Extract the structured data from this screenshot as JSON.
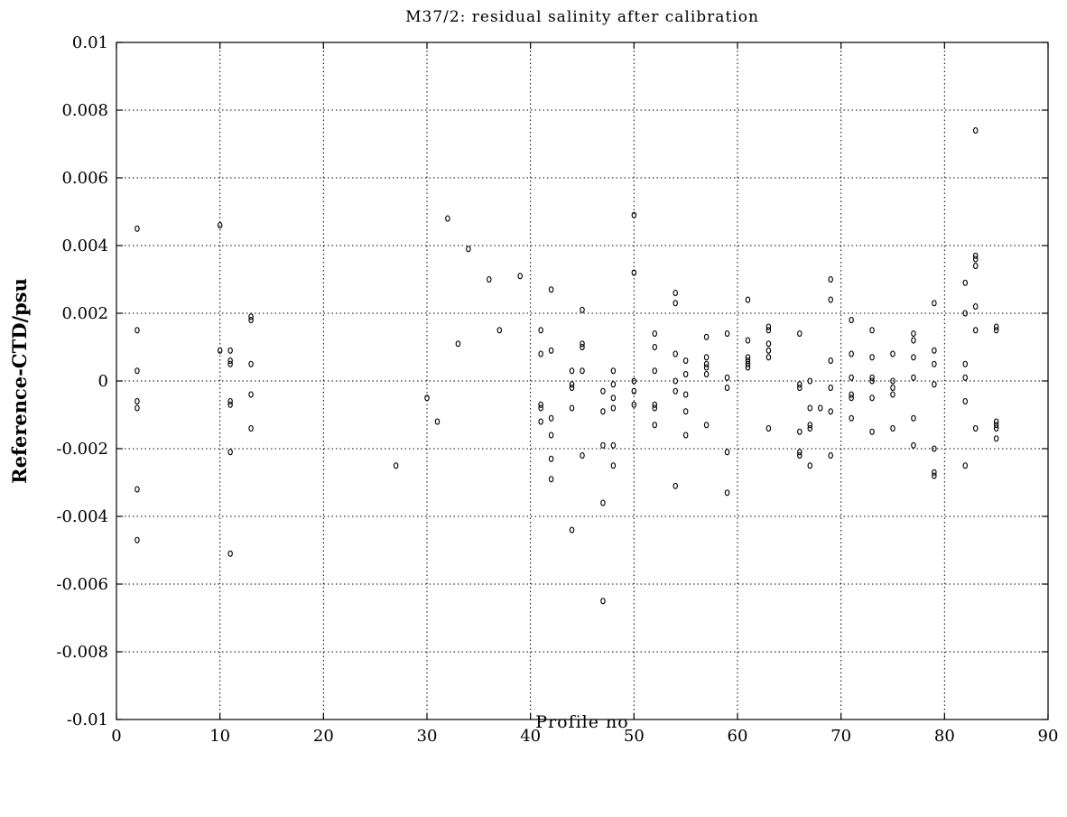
{
  "chart_data": {
    "type": "scatter",
    "title": "M37/2: residual salinity after calibration",
    "xlabel": "Profile no",
    "ylabel": "Reference-CTD/psu",
    "xlim": [
      0,
      90
    ],
    "ylim": [
      -0.01,
      0.01
    ],
    "xticks": [
      0,
      10,
      20,
      30,
      40,
      50,
      60,
      70,
      80,
      90
    ],
    "yticks": [
      -0.01,
      -0.008,
      -0.006,
      -0.004,
      -0.002,
      0,
      0.002,
      0.004,
      0.006,
      0.008,
      0.01
    ],
    "xtick_labels": [
      "0",
      "10",
      "20",
      "30",
      "40",
      "50",
      "60",
      "70",
      "80",
      "90"
    ],
    "ytick_labels": [
      "-0.01",
      "-0.008",
      "-0.006",
      "-0.004",
      "-0.002",
      "0",
      "0.002",
      "0.004",
      "0.006",
      "0.008",
      "0.01"
    ],
    "grid": true,
    "marker": "open-circle",
    "points": [
      [
        2,
        0.0045
      ],
      [
        2,
        0.0015
      ],
      [
        2,
        0.0003
      ],
      [
        2,
        -0.0006
      ],
      [
        2,
        -0.0008
      ],
      [
        2,
        -0.0032
      ],
      [
        2,
        -0.0047
      ],
      [
        10,
        0.0046
      ],
      [
        10,
        0.0009
      ],
      [
        11,
        0.0009
      ],
      [
        11,
        0.0006
      ],
      [
        11,
        0.0005
      ],
      [
        11,
        -0.0006
      ],
      [
        11,
        -0.0007
      ],
      [
        11,
        -0.0021
      ],
      [
        11,
        -0.0051
      ],
      [
        13,
        0.0019
      ],
      [
        13,
        0.0018
      ],
      [
        13,
        0.0005
      ],
      [
        13,
        -0.0004
      ],
      [
        13,
        -0.0014
      ],
      [
        27,
        -0.0025
      ],
      [
        30,
        -0.0005
      ],
      [
        31,
        -0.0012
      ],
      [
        32,
        0.0048
      ],
      [
        33,
        0.0011
      ],
      [
        34,
        0.0039
      ],
      [
        36,
        0.003
      ],
      [
        37,
        0.0015
      ],
      [
        39,
        0.0031
      ],
      [
        41,
        0.0015
      ],
      [
        41,
        0.0008
      ],
      [
        41,
        -0.0007
      ],
      [
        41,
        -0.0008
      ],
      [
        41,
        -0.0012
      ],
      [
        42,
        0.0027
      ],
      [
        42,
        0.0009
      ],
      [
        42,
        -0.0011
      ],
      [
        42,
        -0.0016
      ],
      [
        42,
        -0.0023
      ],
      [
        42,
        -0.0029
      ],
      [
        44,
        0.0003
      ],
      [
        44,
        -0.0001
      ],
      [
        44,
        -0.0002
      ],
      [
        44,
        -0.0008
      ],
      [
        44,
        -0.0044
      ],
      [
        45,
        0.0021
      ],
      [
        45,
        0.0011
      ],
      [
        45,
        0.001
      ],
      [
        45,
        0.0003
      ],
      [
        45,
        -0.0022
      ],
      [
        47,
        -0.0003
      ],
      [
        47,
        -0.0009
      ],
      [
        47,
        -0.0019
      ],
      [
        47,
        -0.0036
      ],
      [
        47,
        -0.0065
      ],
      [
        48,
        0.0003
      ],
      [
        48,
        -0.0001
      ],
      [
        48,
        -0.0005
      ],
      [
        48,
        -0.0008
      ],
      [
        48,
        -0.0019
      ],
      [
        48,
        -0.0025
      ],
      [
        50,
        0.0049
      ],
      [
        50,
        0.0032
      ],
      [
        50,
        0.0
      ],
      [
        50,
        -0.0003
      ],
      [
        50,
        -0.0007
      ],
      [
        52,
        0.0014
      ],
      [
        52,
        0.001
      ],
      [
        52,
        0.0003
      ],
      [
        52,
        -0.0007
      ],
      [
        52,
        -0.0008
      ],
      [
        52,
        -0.0013
      ],
      [
        54,
        0.0026
      ],
      [
        54,
        0.0023
      ],
      [
        54,
        0.0008
      ],
      [
        54,
        0.0
      ],
      [
        54,
        -0.0003
      ],
      [
        54,
        -0.0031
      ],
      [
        55,
        0.0006
      ],
      [
        55,
        0.0002
      ],
      [
        55,
        -0.0004
      ],
      [
        55,
        -0.0009
      ],
      [
        55,
        -0.0016
      ],
      [
        57,
        0.0013
      ],
      [
        57,
        0.0007
      ],
      [
        57,
        0.0005
      ],
      [
        57,
        0.0004
      ],
      [
        57,
        0.0002
      ],
      [
        57,
        -0.0013
      ],
      [
        59,
        0.0014
      ],
      [
        59,
        0.0001
      ],
      [
        59,
        -0.0002
      ],
      [
        59,
        -0.0021
      ],
      [
        59,
        -0.0033
      ],
      [
        61,
        0.0024
      ],
      [
        61,
        0.0012
      ],
      [
        61,
        0.0007
      ],
      [
        61,
        0.0006
      ],
      [
        61,
        0.0005
      ],
      [
        61,
        0.0004
      ],
      [
        63,
        0.0016
      ],
      [
        63,
        0.0015
      ],
      [
        63,
        0.0011
      ],
      [
        63,
        0.0009
      ],
      [
        63,
        0.0007
      ],
      [
        63,
        -0.0014
      ],
      [
        66,
        0.0014
      ],
      [
        66,
        -0.0001
      ],
      [
        66,
        -0.0002
      ],
      [
        66,
        -0.0015
      ],
      [
        66,
        -0.0021
      ],
      [
        66,
        -0.0022
      ],
      [
        67,
        0.0
      ],
      [
        67,
        -0.0008
      ],
      [
        67,
        -0.0013
      ],
      [
        67,
        -0.0014
      ],
      [
        67,
        -0.0025
      ],
      [
        68,
        -0.0008
      ],
      [
        69,
        0.003
      ],
      [
        69,
        0.0024
      ],
      [
        69,
        0.0006
      ],
      [
        69,
        -0.0002
      ],
      [
        69,
        -0.0009
      ],
      [
        69,
        -0.0022
      ],
      [
        71,
        0.0018
      ],
      [
        71,
        0.0008
      ],
      [
        71,
        0.0001
      ],
      [
        71,
        -0.0004
      ],
      [
        71,
        -0.0005
      ],
      [
        71,
        -0.0011
      ],
      [
        73,
        0.0015
      ],
      [
        73,
        0.0007
      ],
      [
        73,
        0.0001
      ],
      [
        73,
        0.0
      ],
      [
        73,
        -0.0005
      ],
      [
        73,
        -0.0015
      ],
      [
        75,
        0.0008
      ],
      [
        75,
        0.0
      ],
      [
        75,
        -0.0002
      ],
      [
        75,
        -0.0004
      ],
      [
        75,
        -0.0014
      ],
      [
        77,
        0.0014
      ],
      [
        77,
        0.0012
      ],
      [
        77,
        0.0007
      ],
      [
        77,
        0.0001
      ],
      [
        77,
        -0.0011
      ],
      [
        77,
        -0.0019
      ],
      [
        79,
        0.0023
      ],
      [
        79,
        0.0009
      ],
      [
        79,
        0.0005
      ],
      [
        79,
        -0.0001
      ],
      [
        79,
        -0.002
      ],
      [
        79,
        -0.0027
      ],
      [
        79,
        -0.0028
      ],
      [
        82,
        0.0029
      ],
      [
        82,
        0.002
      ],
      [
        82,
        0.0005
      ],
      [
        82,
        0.0001
      ],
      [
        82,
        -0.0006
      ],
      [
        82,
        -0.0025
      ],
      [
        83,
        0.0074
      ],
      [
        83,
        0.0037
      ],
      [
        83,
        0.0036
      ],
      [
        83,
        0.0034
      ],
      [
        83,
        0.0022
      ],
      [
        83,
        0.0015
      ],
      [
        83,
        -0.0014
      ],
      [
        85,
        0.0016
      ],
      [
        85,
        0.0015
      ],
      [
        85,
        -0.0012
      ],
      [
        85,
        -0.0013
      ],
      [
        85,
        -0.0014
      ],
      [
        85,
        -0.0017
      ]
    ]
  }
}
